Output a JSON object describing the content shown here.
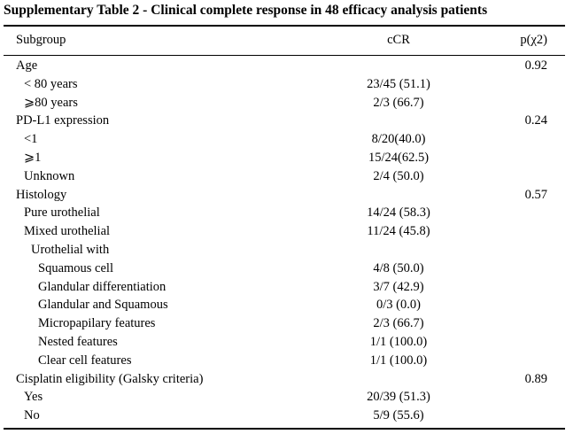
{
  "title": "Supplementary Table 2 - Clinical complete response in 48 efficacy analysis patients",
  "columns": {
    "subgroup": "Subgroup",
    "ccr": "cCR",
    "p": "p(χ2)"
  },
  "rows": [
    {
      "label": "Age",
      "level": 0,
      "ccr": "",
      "p": "0.92"
    },
    {
      "label": "< 80 years",
      "level": 1,
      "ccr": "23/45 (51.1)",
      "p": ""
    },
    {
      "label": "⩾80 years",
      "level": 1,
      "ccr": "2/3 (66.7)",
      "p": ""
    },
    {
      "label": "PD-L1 expression",
      "level": 0,
      "ccr": "",
      "p": "0.24"
    },
    {
      "label": "<1",
      "level": 1,
      "ccr": "8/20(40.0)",
      "p": ""
    },
    {
      "label": "⩾1",
      "level": 1,
      "ccr": "15/24(62.5)",
      "p": ""
    },
    {
      "label": "Unknown",
      "level": 1,
      "ccr": "2/4 (50.0)",
      "p": ""
    },
    {
      "label": "Histology",
      "level": 0,
      "ccr": "",
      "p": "0.57"
    },
    {
      "label": "Pure urothelial",
      "level": 1,
      "ccr": "14/24 (58.3)",
      "p": ""
    },
    {
      "label": "Mixed urothelial",
      "level": 1,
      "ccr": "11/24 (45.8)",
      "p": ""
    },
    {
      "label": "Urothelial with",
      "level": 2,
      "ccr": "",
      "p": ""
    },
    {
      "label": "Squamous cell",
      "level": 3,
      "ccr": "4/8 (50.0)",
      "p": ""
    },
    {
      "label": "Glandular differentiation",
      "level": 3,
      "ccr": "3/7 (42.9)",
      "p": ""
    },
    {
      "label": "Glandular and Squamous",
      "level": 3,
      "ccr": "0/3 (0.0)",
      "p": ""
    },
    {
      "label": "Micropapilary features",
      "level": 3,
      "ccr": "2/3 (66.7)",
      "p": ""
    },
    {
      "label": "Nested features",
      "level": 3,
      "ccr": "1/1 (100.0)",
      "p": ""
    },
    {
      "label": "Clear cell features",
      "level": 3,
      "ccr": "1/1 (100.0)",
      "p": ""
    },
    {
      "label": "Cisplatin eligibility (Galsky criteria)",
      "level": 0,
      "ccr": "",
      "p": "0.89"
    },
    {
      "label": "Yes",
      "level": 1,
      "ccr": "20/39 (51.3)",
      "p": ""
    },
    {
      "label": "No",
      "level": 1,
      "ccr": "5/9 (55.6)",
      "p": ""
    }
  ]
}
